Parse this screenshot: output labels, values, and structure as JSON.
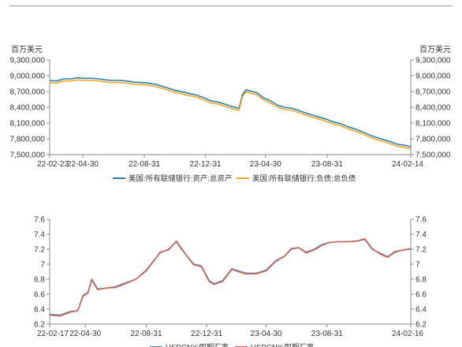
{
  "colors": {
    "background": "#ffffff",
    "axis": "#888888",
    "top_border": "#999999"
  },
  "chart_data": [
    {
      "type": "line",
      "title": "",
      "unit_left": "百万美元",
      "unit_right": "百万美元",
      "ylim": [
        7500000,
        9300000
      ],
      "y_ticks": [
        "9,300,000",
        "9,000,000",
        "8,700,000",
        "8,400,000",
        "8,100,000",
        "7,800,000",
        "7,500,000"
      ],
      "y_tick_values": [
        9300000,
        9000000,
        8700000,
        8400000,
        8100000,
        7800000,
        7500000
      ],
      "x_tick_labels": [
        "22-02-23",
        "22-04-30",
        "22-08-31",
        "22-12-31",
        "23-04-30",
        "23-08-31",
        "24-02-14"
      ],
      "x_range": [
        "2022-02-23",
        "2024-02-14"
      ],
      "legend_position": "bottom",
      "series": [
        {
          "name": "美国:所有联储银行:资产:总资产",
          "color": "#2a7fa8",
          "x": [
            "2022-02-23",
            "2022-03-09",
            "2022-03-23",
            "2022-04-06",
            "2022-04-20",
            "2022-05-04",
            "2022-05-18",
            "2022-06-01",
            "2022-06-15",
            "2022-06-29",
            "2022-07-13",
            "2022-07-27",
            "2022-08-10",
            "2022-08-24",
            "2022-09-07",
            "2022-09-21",
            "2022-10-05",
            "2022-10-19",
            "2022-11-02",
            "2022-11-16",
            "2022-11-30",
            "2022-12-14",
            "2022-12-28",
            "2023-01-11",
            "2023-01-25",
            "2023-02-08",
            "2023-02-22",
            "2023-03-08",
            "2023-03-15",
            "2023-03-22",
            "2023-03-29",
            "2023-04-12",
            "2023-04-26",
            "2023-05-10",
            "2023-05-24",
            "2023-06-07",
            "2023-06-21",
            "2023-07-05",
            "2023-07-19",
            "2023-08-02",
            "2023-08-16",
            "2023-08-30",
            "2023-09-13",
            "2023-09-27",
            "2023-10-11",
            "2023-10-25",
            "2023-11-08",
            "2023-11-22",
            "2023-12-06",
            "2023-12-20",
            "2024-01-03",
            "2024-01-17",
            "2024-01-31",
            "2024-02-14"
          ],
          "y": [
            8910000,
            8900000,
            8940000,
            8940000,
            8960000,
            8950000,
            8950000,
            8940000,
            8920000,
            8910000,
            8910000,
            8900000,
            8880000,
            8870000,
            8860000,
            8840000,
            8800000,
            8760000,
            8720000,
            8690000,
            8660000,
            8630000,
            8580000,
            8520000,
            8500000,
            8460000,
            8410000,
            8380000,
            8640000,
            8730000,
            8710000,
            8680000,
            8580000,
            8520000,
            8440000,
            8400000,
            8380000,
            8340000,
            8290000,
            8250000,
            8210000,
            8170000,
            8120000,
            8090000,
            8030000,
            7990000,
            7940000,
            7880000,
            7830000,
            7790000,
            7750000,
            7700000,
            7680000,
            7650000
          ]
        },
        {
          "name": "美国:所有联储银行:负债:总负债",
          "color": "#f5a623",
          "x": [
            "2022-02-23",
            "2022-03-09",
            "2022-03-23",
            "2022-04-06",
            "2022-04-20",
            "2022-05-04",
            "2022-05-18",
            "2022-06-01",
            "2022-06-15",
            "2022-06-29",
            "2022-07-13",
            "2022-07-27",
            "2022-08-10",
            "2022-08-24",
            "2022-09-07",
            "2022-09-21",
            "2022-10-05",
            "2022-10-19",
            "2022-11-02",
            "2022-11-16",
            "2022-11-30",
            "2022-12-14",
            "2022-12-28",
            "2023-01-11",
            "2023-01-25",
            "2023-02-08",
            "2023-02-22",
            "2023-03-08",
            "2023-03-15",
            "2023-03-22",
            "2023-03-29",
            "2023-04-12",
            "2023-04-26",
            "2023-05-10",
            "2023-05-24",
            "2023-06-07",
            "2023-06-21",
            "2023-07-05",
            "2023-07-19",
            "2023-08-02",
            "2023-08-16",
            "2023-08-30",
            "2023-09-13",
            "2023-09-27",
            "2023-10-11",
            "2023-10-25",
            "2023-11-08",
            "2023-11-22",
            "2023-12-06",
            "2023-12-20",
            "2024-01-03",
            "2024-01-17",
            "2024-01-31",
            "2024-02-14"
          ],
          "y": [
            8870000,
            8860000,
            8900000,
            8900000,
            8920000,
            8910000,
            8910000,
            8900000,
            8880000,
            8870000,
            8870000,
            8860000,
            8840000,
            8830000,
            8820000,
            8800000,
            8760000,
            8720000,
            8680000,
            8650000,
            8620000,
            8590000,
            8540000,
            8480000,
            8460000,
            8420000,
            8370000,
            8340000,
            8600000,
            8690000,
            8670000,
            8640000,
            8540000,
            8480000,
            8400000,
            8360000,
            8340000,
            8300000,
            8250000,
            8210000,
            8170000,
            8130000,
            8080000,
            8050000,
            7990000,
            7950000,
            7900000,
            7840000,
            7790000,
            7750000,
            7710000,
            7660000,
            7640000,
            7610000
          ]
        }
      ]
    },
    {
      "type": "line",
      "title": "",
      "ylim": [
        6.2,
        7.6
      ],
      "y_ticks": [
        "7.6",
        "7.4",
        "7.2",
        "7",
        "6.8",
        "6.6",
        "6.4",
        "6.2"
      ],
      "y_tick_values": [
        7.6,
        7.4,
        7.2,
        7.0,
        6.8,
        6.6,
        6.4,
        6.2
      ],
      "x_tick_labels": [
        "22-02-17",
        "22-04-30",
        "22-08-31",
        "22-12-31",
        "23-04-30",
        "23-08-31",
        "24-02-16"
      ],
      "x_range": [
        "2022-02-17",
        "2024-02-16"
      ],
      "legend_position": "bottom",
      "series": [
        {
          "name": "USDCNY:即期汇率",
          "color": "#4a8fc0",
          "x": [
            "2022-02-17",
            "2022-03-10",
            "2022-03-31",
            "2022-04-15",
            "2022-04-25",
            "2022-05-05",
            "2022-05-13",
            "2022-05-25",
            "2022-06-10",
            "2022-06-30",
            "2022-07-20",
            "2022-08-10",
            "2022-08-31",
            "2022-09-15",
            "2022-09-28",
            "2022-10-15",
            "2022-10-31",
            "2022-11-10",
            "2022-11-20",
            "2022-12-05",
            "2022-12-20",
            "2023-01-05",
            "2023-01-15",
            "2023-02-01",
            "2023-02-20",
            "2023-03-05",
            "2023-03-20",
            "2023-04-10",
            "2023-04-30",
            "2023-05-20",
            "2023-06-05",
            "2023-06-20",
            "2023-07-05",
            "2023-07-20",
            "2023-08-05",
            "2023-08-20",
            "2023-09-05",
            "2023-09-20",
            "2023-10-10",
            "2023-10-31",
            "2023-11-15",
            "2023-11-30",
            "2023-12-15",
            "2023-12-31",
            "2024-01-15",
            "2024-02-01",
            "2024-02-16"
          ],
          "y": [
            6.33,
            6.32,
            6.37,
            6.38,
            6.58,
            6.62,
            6.8,
            6.67,
            6.68,
            6.7,
            6.75,
            6.8,
            6.92,
            7.05,
            7.15,
            7.2,
            7.3,
            7.2,
            7.12,
            7.0,
            6.98,
            6.78,
            6.74,
            6.78,
            6.94,
            6.91,
            6.88,
            6.88,
            6.92,
            7.05,
            7.1,
            7.2,
            7.22,
            7.16,
            7.2,
            7.26,
            7.29,
            7.3,
            7.3,
            7.31,
            7.33,
            7.2,
            7.15,
            7.1,
            7.17,
            7.19,
            7.2
          ]
        },
        {
          "name": "USDCNY:即期汇率",
          "color": "#d0635a",
          "x": [
            "2022-02-17",
            "2022-03-10",
            "2022-03-31",
            "2022-04-15",
            "2022-04-25",
            "2022-05-05",
            "2022-05-13",
            "2022-05-25",
            "2022-06-10",
            "2022-06-30",
            "2022-07-20",
            "2022-08-10",
            "2022-08-31",
            "2022-09-15",
            "2022-09-28",
            "2022-10-15",
            "2022-10-31",
            "2022-11-10",
            "2022-11-20",
            "2022-12-05",
            "2022-12-20",
            "2023-01-05",
            "2023-01-15",
            "2023-02-01",
            "2023-02-20",
            "2023-03-05",
            "2023-03-20",
            "2023-04-10",
            "2023-04-30",
            "2023-05-20",
            "2023-06-05",
            "2023-06-20",
            "2023-07-05",
            "2023-07-20",
            "2023-08-05",
            "2023-08-20",
            "2023-09-05",
            "2023-09-20",
            "2023-10-10",
            "2023-10-31",
            "2023-11-15",
            "2023-11-30",
            "2023-12-15",
            "2023-12-31",
            "2024-01-15",
            "2024-02-01",
            "2024-02-16"
          ],
          "y": [
            6.32,
            6.31,
            6.36,
            6.38,
            6.57,
            6.61,
            6.79,
            6.66,
            6.68,
            6.69,
            6.74,
            6.8,
            6.91,
            7.04,
            7.16,
            7.19,
            7.31,
            7.21,
            7.12,
            6.99,
            6.97,
            6.77,
            6.73,
            6.77,
            6.93,
            6.9,
            6.87,
            6.87,
            6.91,
            7.04,
            7.1,
            7.21,
            7.22,
            7.15,
            7.19,
            7.25,
            7.29,
            7.3,
            7.3,
            7.31,
            7.34,
            7.21,
            7.14,
            7.09,
            7.16,
            7.19,
            7.21
          ]
        }
      ]
    }
  ]
}
